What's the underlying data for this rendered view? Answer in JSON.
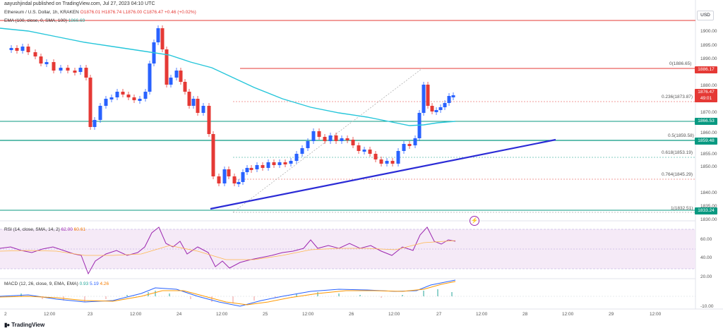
{
  "header": {
    "text": "aayushjindal published on TradingView.com, Jul 27, 2023 04:10 UTC"
  },
  "legend": {
    "symbol": "Ethereum / U.S. Dollar, 1h, KRAKEN",
    "open": "O1876.01",
    "high": "H1876.74",
    "low": "L1876.00",
    "close": "C1876.47",
    "change": "+0.46 (+0.02%)",
    "ema_label": "EMA (100, close, 0, SMA, 100)",
    "ema_value": "1866.69"
  },
  "rsi": {
    "label": "RSI (14, close, SMA, 14, 2)",
    "v1": "62.00",
    "v2": "60.61"
  },
  "macd": {
    "label": "MACD (12, 26, close, 9, EMA, EMA)",
    "v1": "0.93",
    "v2": "5.19",
    "v3": "4.26"
  },
  "currency": "USD",
  "price_axis": [
    "1900.00",
    "1895.00",
    "1890.00",
    "1880.00",
    "1870.00",
    "1860.00",
    "1855.00",
    "1850.00",
    "1840.00",
    "1835.00",
    "1830.00"
  ],
  "price_tags": {
    "resistance": "1886.17",
    "current": "1876.47",
    "current_time": "49:01",
    "ema": "1866.53",
    "support1": "1859.48",
    "support2": "1833.24"
  },
  "fib_labels": {
    "f0": "0(1886.65)",
    "f236": "0.236(1873.87)",
    "f5": "0.5(1859.58)",
    "f618": "0.618(1853.19)",
    "f764": "0.764(1845.29)",
    "f1": "1(1832.51)"
  },
  "rsi_axis": [
    "60.00",
    "40.00"
  ],
  "macd_axis": [
    "20.00",
    "-10.00"
  ],
  "time_axis": [
    "2",
    "12:00",
    "23",
    "12:00",
    "24",
    "12:00",
    "25",
    "12:00",
    "26",
    "12:00",
    "27",
    "12:00",
    "28",
    "12:00",
    "29",
    "12:00"
  ],
  "brand": "TradingView",
  "colors": {
    "up": "#2962ff",
    "down": "#e53935",
    "ema": "#26c6da",
    "support": "#089981",
    "resistance": "#e53935",
    "trend": "#2b2bd6",
    "rsi": "#9c27b0"
  },
  "icons": {
    "alert": "lightning-icon",
    "logo": "tradingview-logo-icon"
  }
}
